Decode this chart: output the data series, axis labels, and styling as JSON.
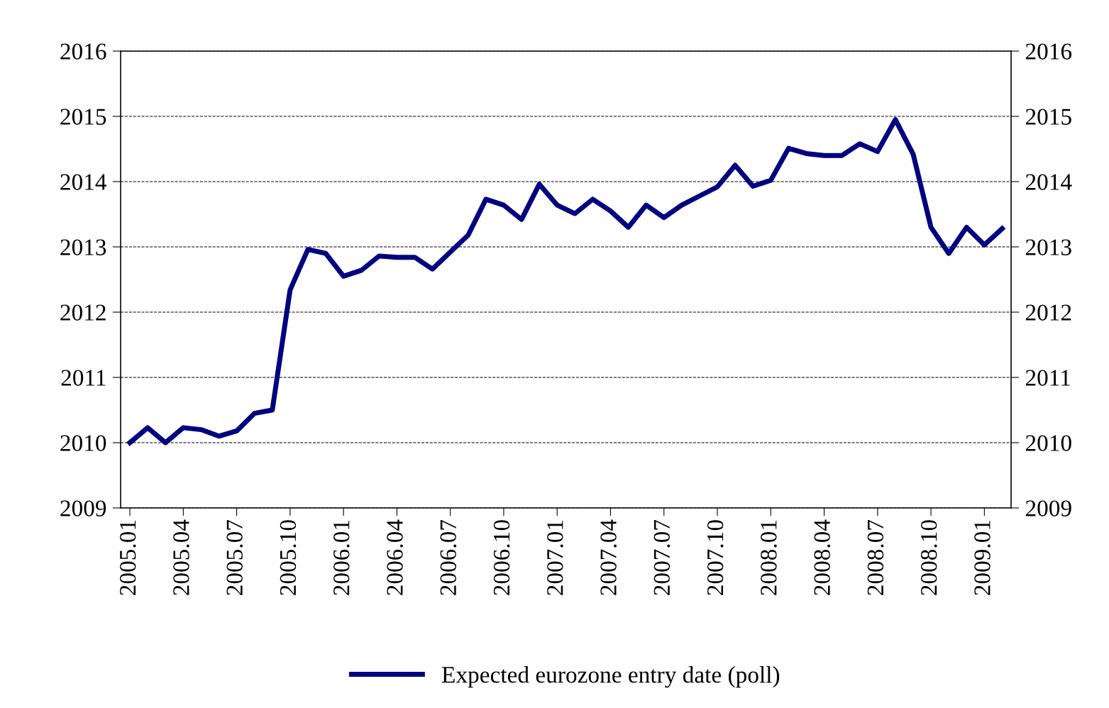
{
  "chart_data": {
    "type": "line",
    "categories": [
      "2005.01",
      null,
      null,
      "2005.04",
      null,
      null,
      "2005.07",
      null,
      null,
      "2005.10",
      null,
      null,
      "2006.01",
      null,
      null,
      "2006.04",
      null,
      null,
      "2006.07",
      null,
      null,
      "2006.10",
      null,
      null,
      "2007.01",
      null,
      null,
      "2007.04",
      null,
      null,
      "2007.07",
      null,
      null,
      "2007.10",
      null,
      null,
      "2008.01",
      null,
      null,
      "2008.04",
      null,
      null,
      "2008.07",
      null,
      null,
      "2008.10",
      null,
      null,
      "2009.01",
      null
    ],
    "series": [
      {
        "name": "Expected eurozone entry date (poll)",
        "color": "#000080",
        "values": [
          2010.0,
          2010.23,
          2010.0,
          2010.23,
          2010.2,
          2010.1,
          2010.18,
          2010.45,
          2010.5,
          2012.34,
          2012.96,
          2012.9,
          2012.55,
          2012.64,
          2012.86,
          2012.84,
          2012.84,
          2012.66,
          2012.92,
          2013.18,
          2013.73,
          2013.64,
          2013.42,
          2013.96,
          2013.64,
          2013.51,
          2013.73,
          2013.55,
          2013.3,
          2013.64,
          2013.45,
          2013.64,
          2013.78,
          2013.92,
          2014.25,
          2013.93,
          2014.02,
          2014.51,
          2014.43,
          2014.4,
          2014.4,
          2014.58,
          2014.46,
          2014.95,
          2014.42,
          2013.3,
          2012.9,
          2013.3,
          2013.03,
          2013.28
        ]
      }
    ],
    "ylim": [
      2009,
      2016
    ],
    "yticks": [
      2009,
      2010,
      2011,
      2012,
      2013,
      2014,
      2015,
      2016
    ],
    "y2lim": [
      2009,
      2016
    ],
    "y2ticks": [
      2009,
      2010,
      2011,
      2012,
      2013,
      2014,
      2015,
      2016
    ],
    "grid": "y",
    "legend": "bottom",
    "marker": "none",
    "line_style": "solid"
  }
}
